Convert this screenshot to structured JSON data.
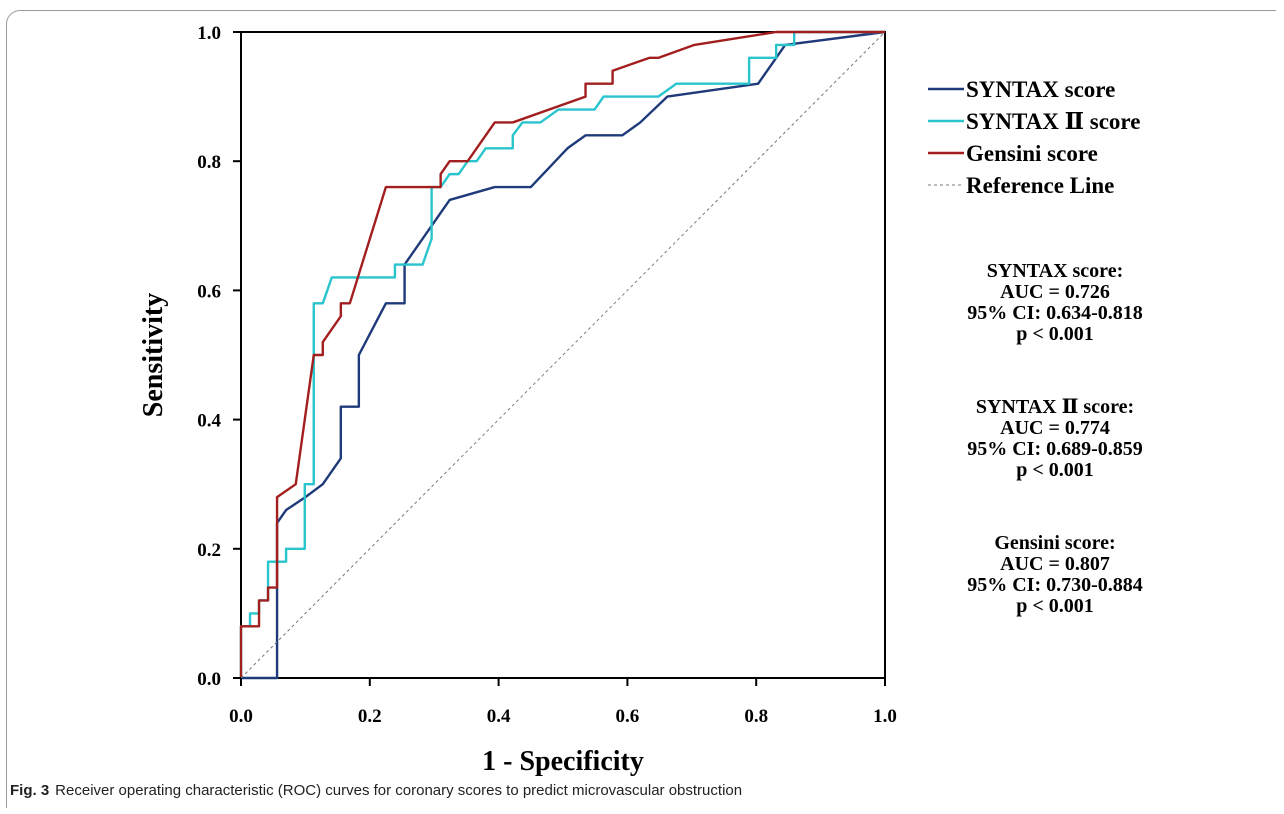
{
  "caption": {
    "label": "Fig. 3",
    "text": "Receiver operating characteristic (ROC) curves for coronary scores to predict microvascular obstruction"
  },
  "chart_data": {
    "type": "line",
    "title": "",
    "xlabel": "1 - Specificity",
    "ylabel": "Sensitivity",
    "xlim": [
      0,
      1
    ],
    "ylim": [
      0,
      1
    ],
    "x_ticks": [
      "0.0",
      "0.2",
      "0.4",
      "0.6",
      "0.8",
      "1.0"
    ],
    "y_ticks": [
      "0.0",
      "0.2",
      "0.4",
      "0.6",
      "0.8",
      "1.0"
    ],
    "grid": false,
    "legend_position": "right",
    "series": [
      {
        "name": "SYNTAX score",
        "color": "#1f3a7a",
        "points": [
          [
            0,
            0
          ],
          [
            0.056,
            0
          ],
          [
            0.056,
            0.14
          ],
          [
            0.056,
            0.24
          ],
          [
            0.07,
            0.26
          ],
          [
            0.1,
            0.28
          ],
          [
            0.127,
            0.3
          ],
          [
            0.155,
            0.34
          ],
          [
            0.155,
            0.42
          ],
          [
            0.183,
            0.42
          ],
          [
            0.183,
            0.5
          ],
          [
            0.225,
            0.58
          ],
          [
            0.254,
            0.58
          ],
          [
            0.254,
            0.64
          ],
          [
            0.296,
            0.7
          ],
          [
            0.324,
            0.74
          ],
          [
            0.394,
            0.76
          ],
          [
            0.45,
            0.76
          ],
          [
            0.507,
            0.82
          ],
          [
            0.535,
            0.84
          ],
          [
            0.592,
            0.84
          ],
          [
            0.62,
            0.86
          ],
          [
            0.662,
            0.9
          ],
          [
            0.803,
            0.92
          ],
          [
            0.817,
            0.94
          ],
          [
            0.845,
            0.98
          ],
          [
            1,
            1
          ]
        ]
      },
      {
        "name": "SYNTAX Ⅱ score",
        "color": "#29c4cc",
        "points": [
          [
            0,
            0
          ],
          [
            0,
            0.08
          ],
          [
            0.014,
            0.08
          ],
          [
            0.014,
            0.1
          ],
          [
            0.028,
            0.1
          ],
          [
            0.028,
            0.12
          ],
          [
            0.042,
            0.12
          ],
          [
            0.042,
            0.18
          ],
          [
            0.056,
            0.18
          ],
          [
            0.07,
            0.18
          ],
          [
            0.07,
            0.2
          ],
          [
            0.099,
            0.2
          ],
          [
            0.099,
            0.3
          ],
          [
            0.113,
            0.3
          ],
          [
            0.113,
            0.58
          ],
          [
            0.127,
            0.58
          ],
          [
            0.141,
            0.62
          ],
          [
            0.225,
            0.62
          ],
          [
            0.239,
            0.62
          ],
          [
            0.239,
            0.64
          ],
          [
            0.268,
            0.64
          ],
          [
            0.282,
            0.64
          ],
          [
            0.296,
            0.68
          ],
          [
            0.296,
            0.76
          ],
          [
            0.31,
            0.76
          ],
          [
            0.324,
            0.78
          ],
          [
            0.338,
            0.78
          ],
          [
            0.352,
            0.8
          ],
          [
            0.366,
            0.8
          ],
          [
            0.38,
            0.82
          ],
          [
            0.422,
            0.82
          ],
          [
            0.422,
            0.84
          ],
          [
            0.437,
            0.86
          ],
          [
            0.465,
            0.86
          ],
          [
            0.493,
            0.88
          ],
          [
            0.549,
            0.88
          ],
          [
            0.563,
            0.9
          ],
          [
            0.648,
            0.9
          ],
          [
            0.676,
            0.92
          ],
          [
            0.789,
            0.92
          ],
          [
            0.789,
            0.96
          ],
          [
            0.831,
            0.96
          ],
          [
            0.831,
            0.98
          ],
          [
            0.859,
            0.98
          ],
          [
            0.859,
            1
          ],
          [
            1,
            1
          ]
        ]
      },
      {
        "name": "Gensini score",
        "color": "#a31f1f",
        "points": [
          [
            0,
            0
          ],
          [
            0,
            0.08
          ],
          [
            0.028,
            0.08
          ],
          [
            0.028,
            0.12
          ],
          [
            0.042,
            0.12
          ],
          [
            0.042,
            0.14
          ],
          [
            0.056,
            0.14
          ],
          [
            0.056,
            0.28
          ],
          [
            0.085,
            0.3
          ],
          [
            0.113,
            0.5
          ],
          [
            0.127,
            0.5
          ],
          [
            0.127,
            0.52
          ],
          [
            0.155,
            0.56
          ],
          [
            0.155,
            0.58
          ],
          [
            0.169,
            0.58
          ],
          [
            0.225,
            0.76
          ],
          [
            0.31,
            0.76
          ],
          [
            0.31,
            0.78
          ],
          [
            0.324,
            0.8
          ],
          [
            0.352,
            0.8
          ],
          [
            0.394,
            0.86
          ],
          [
            0.422,
            0.86
          ],
          [
            0.535,
            0.9
          ],
          [
            0.535,
            0.92
          ],
          [
            0.577,
            0.92
          ],
          [
            0.577,
            0.94
          ],
          [
            0.634,
            0.96
          ],
          [
            0.648,
            0.96
          ],
          [
            0.704,
            0.98
          ],
          [
            0.831,
            1
          ],
          [
            1,
            1
          ]
        ]
      },
      {
        "name": "Reference Line",
        "color": "#7a7a7a",
        "dashed": true,
        "points": [
          [
            0,
            0
          ],
          [
            1,
            1
          ]
        ]
      }
    ],
    "annotations": [
      {
        "lines": [
          "SYNTAX score:",
          "AUC = 0.726",
          "95% CI: 0.634-0.818",
          "p < 0.001"
        ]
      },
      {
        "lines": [
          "SYNTAX Ⅱ score:",
          "AUC = 0.774",
          "95% CI: 0.689-0.859",
          "p < 0.001"
        ]
      },
      {
        "lines": [
          "Gensini score:",
          "AUC = 0.807",
          "95% CI: 0.730-0.884",
          "p < 0.001"
        ]
      }
    ]
  }
}
